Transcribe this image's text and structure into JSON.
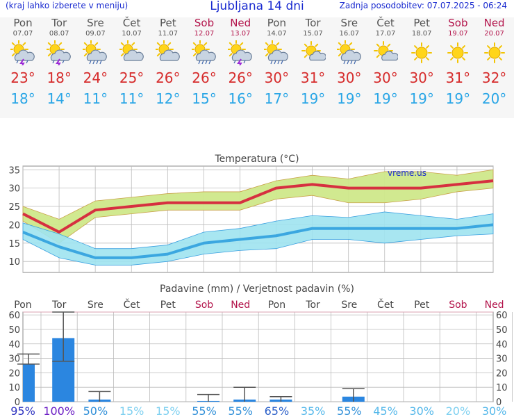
{
  "header": {
    "left_note": "(kraj lahko izberete v meniju)",
    "title": "Ljubljana 14 dni",
    "updated": "Zadnja posodobitev: 07.07.2025 - 06:24"
  },
  "days": [
    {
      "name": "Pon",
      "date": "07.07",
      "weekend": false,
      "icon": "sun-cloud-thunder-icon",
      "tmax": "23°",
      "tmin": "18°"
    },
    {
      "name": "Tor",
      "date": "08.07",
      "weekend": false,
      "icon": "sun-cloud-thunder-icon",
      "tmax": "18°",
      "tmin": "14°"
    },
    {
      "name": "Sre",
      "date": "09.07",
      "weekend": false,
      "icon": "sun-cloud-rain-icon",
      "tmax": "24°",
      "tmin": "11°"
    },
    {
      "name": "Čet",
      "date": "10.07",
      "weekend": false,
      "icon": "sun-cloud-icon",
      "tmax": "25°",
      "tmin": "11°"
    },
    {
      "name": "Pet",
      "date": "11.07",
      "weekend": false,
      "icon": "sun-cloud-icon",
      "tmax": "26°",
      "tmin": "12°"
    },
    {
      "name": "Sob",
      "date": "12.07",
      "weekend": true,
      "icon": "sun-cloud-rain-icon",
      "tmax": "26°",
      "tmin": "15°"
    },
    {
      "name": "Ned",
      "date": "13.07",
      "weekend": true,
      "icon": "sun-cloud-thunder-icon",
      "tmax": "26°",
      "tmin": "16°"
    },
    {
      "name": "Pon",
      "date": "14.07",
      "weekend": false,
      "icon": "sun-cloud-rain-icon",
      "tmax": "30°",
      "tmin": "17°"
    },
    {
      "name": "Tor",
      "date": "15.07",
      "weekend": false,
      "icon": "sun-small-cloud-icon",
      "tmax": "31°",
      "tmin": "19°"
    },
    {
      "name": "Sre",
      "date": "16.07",
      "weekend": false,
      "icon": "sun-cloud-rain-icon",
      "tmax": "30°",
      "tmin": "19°"
    },
    {
      "name": "Čet",
      "date": "17.07",
      "weekend": false,
      "icon": "sun-small-cloud-icon",
      "tmax": "30°",
      "tmin": "19°"
    },
    {
      "name": "Pet",
      "date": "18.07",
      "weekend": false,
      "icon": "sun-icon",
      "tmax": "30°",
      "tmin": "19°"
    },
    {
      "name": "Sob",
      "date": "19.07",
      "weekend": true,
      "icon": "sun-icon",
      "tmax": "31°",
      "tmin": "19°"
    },
    {
      "name": "Ned",
      "date": "20.07",
      "weekend": true,
      "icon": "sun-icon",
      "tmax": "32°",
      "tmin": "20°"
    }
  ],
  "colors": {
    "title_blue": "#1a2bd0",
    "max_line": "#d63040",
    "max_band": "#cfe88a",
    "min_line": "#3ba7e0",
    "min_band": "#9fe3ef",
    "bar": "#2b86e0",
    "weekend": "#b3144b"
  },
  "chart_data": [
    {
      "type": "line",
      "title": "Temperatura (°C)",
      "watermark": "vreme.us",
      "ylim": [
        7,
        36
      ],
      "yticks": [
        10,
        15,
        20,
        25,
        30,
        35
      ],
      "grid": true,
      "categories": [
        "07.07",
        "08.07",
        "09.07",
        "10.07",
        "11.07",
        "12.07",
        "13.07",
        "14.07",
        "15.07",
        "16.07",
        "17.07",
        "18.07",
        "19.07",
        "20.07"
      ],
      "series": [
        {
          "values": [
            23,
            18,
            24,
            25,
            26,
            26,
            26,
            30,
            31,
            30,
            30,
            30,
            31,
            32
          ],
          "band_low": [
            21,
            15,
            22,
            23,
            24,
            24,
            24,
            27,
            28,
            26,
            26,
            27,
            29,
            30
          ],
          "band_high": [
            25,
            21.5,
            26.5,
            27.5,
            28.5,
            29,
            29,
            32,
            33.5,
            32.5,
            34.5,
            34.5,
            33.5,
            35
          ]
        },
        {
          "values": [
            18,
            14,
            11,
            11,
            12,
            15,
            16,
            17,
            19,
            19,
            19,
            19,
            19,
            20
          ],
          "band_low": [
            16,
            11,
            9,
            9,
            10,
            12,
            13,
            13.5,
            16,
            16,
            15,
            16,
            17,
            17.5
          ],
          "band_high": [
            20.5,
            17.5,
            13.5,
            13.5,
            14.5,
            18,
            19,
            21,
            22.5,
            22,
            23.5,
            22.5,
            21.5,
            23
          ]
        }
      ]
    },
    {
      "type": "bar",
      "title": "Padavine (mm) / Verjetnost padavin (%)",
      "ylim": [
        0,
        62
      ],
      "yticks": [
        0,
        10,
        20,
        30,
        40,
        50,
        60
      ],
      "grid": true,
      "categories": [
        "Pon",
        "Tor",
        "Sre",
        "Čet",
        "Pet",
        "Sob",
        "Ned",
        "Pon",
        "Tor",
        "Sre",
        "Čet",
        "Pet",
        "Sob",
        "Ned"
      ],
      "values": [
        26,
        44,
        1.5,
        0,
        0,
        0.5,
        1.5,
        1.5,
        0,
        3.5,
        0,
        0,
        0,
        0
      ],
      "error_low": [
        26,
        28,
        0,
        0,
        0,
        0,
        0,
        0,
        0,
        0,
        0,
        0,
        0,
        0
      ],
      "error_high": [
        33,
        62,
        7,
        0,
        0,
        5,
        10,
        3.5,
        0,
        9,
        0,
        0,
        0,
        0
      ],
      "probabilities": [
        "95%",
        "100%",
        "50%",
        "15%",
        "15%",
        "55%",
        "55%",
        "65%",
        "35%",
        "55%",
        "45%",
        "30%",
        "20%",
        "30%"
      ]
    }
  ]
}
